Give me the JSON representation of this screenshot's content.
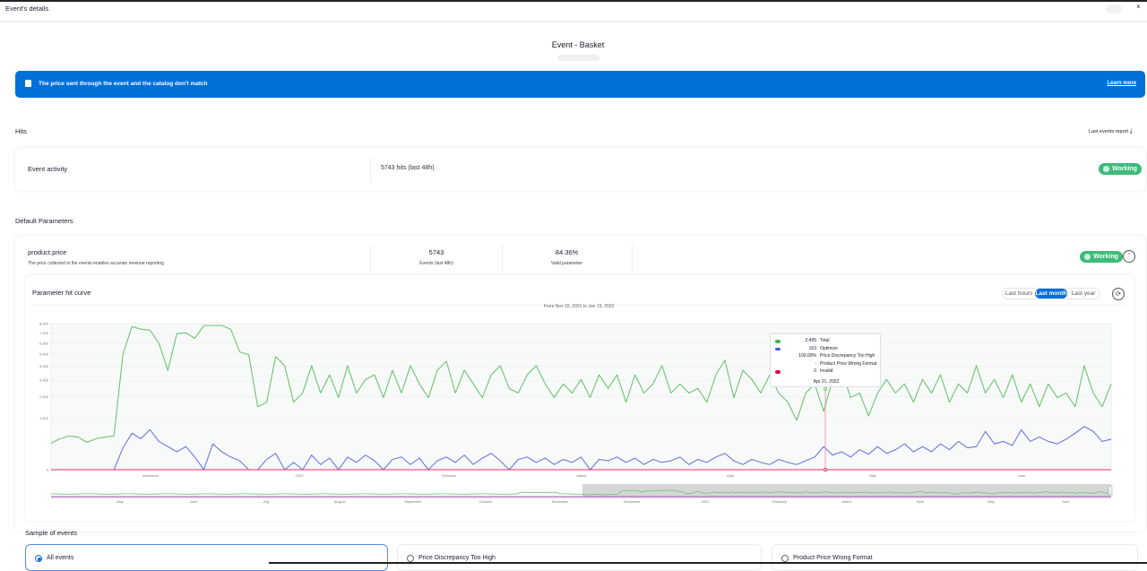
{
  "window": {
    "title": "Event's details",
    "close_icon": "close-icon"
  },
  "header": {
    "title": "Event - Basket"
  },
  "banner": {
    "text": "The price sent through the event and the catalog don't match",
    "link": "Learn more",
    "color": "#0070d9",
    "icon": "alert-icon"
  },
  "hits": {
    "title": "Hits",
    "report_link": "Last events report",
    "report_icon": "download-icon",
    "card": {
      "label": "Event activity",
      "value": "5743 hits (last 48h)",
      "status": "Working"
    }
  },
  "default_parameters": {
    "title": "Default Parameters",
    "param": {
      "name": "product.price",
      "description": "The price collected in the events enables accurate revenue reporting.",
      "stats": [
        {
          "value": "5743",
          "label": "Events (last 48h)"
        },
        {
          "value": "84.36%",
          "label": "Valid parameter"
        }
      ],
      "status": "Working",
      "status_color": "#3dbb7a"
    }
  },
  "hit_curve": {
    "title": "Parameter hit curve",
    "ranges": [
      "Last hours",
      "Last month",
      "Last year"
    ],
    "selected_range": "Last month",
    "range_text": "From Nov 10, 2021 to Jun 19, 2022"
  },
  "chart_data": {
    "type": "line",
    "title": "",
    "x_range": [
      "Nov 10, 2021",
      "Jun 19, 2022"
    ],
    "x_ticks": [
      "December",
      "2022",
      "February",
      "March",
      "April",
      "May",
      "June"
    ],
    "y_scale": "sqrt",
    "y_ticks": [
      "0",
      "1,000",
      "2,000",
      "3,000",
      "4,000",
      "5,000",
      "6,000",
      "7,000",
      "8,000"
    ],
    "ylim": [
      0,
      8000
    ],
    "grid": true,
    "series": [
      {
        "name": "Total",
        "color": "#6cc46f",
        "values": [
          262,
          361,
          427,
          400,
          280,
          361,
          400,
          427,
          5000,
          7690,
          7400,
          7300,
          6000,
          3700,
          6930,
          7022,
          6472,
          7792,
          7792,
          7792,
          7400,
          5194,
          4955,
          1486,
          1709,
          4799,
          4056,
          1709,
          2202,
          4056,
          2202,
          3376,
          1948,
          4056,
          2202,
          3059,
          3376,
          1948,
          3708,
          2202,
          4056,
          2758,
          1948,
          3708,
          4420,
          2202,
          3708,
          2758,
          1948,
          3376,
          4056,
          2472,
          2202,
          3376,
          4056,
          2758,
          1948,
          2758,
          2202,
          3059,
          1948,
          3376,
          2472,
          3376,
          1709,
          3376,
          2202,
          2758,
          4056,
          2202,
          2758,
          2202,
          2472,
          1709,
          3376,
          4500,
          1948,
          3708,
          3059,
          2202,
          3376,
          2202,
          1709,
          910,
          2202,
          2758,
          1278,
          3059,
          3708,
          1948,
          2202,
          1086,
          2202,
          3059,
          2202,
          2758,
          1709,
          3059,
          2202,
          3376,
          1709,
          2758,
          2202,
          4056,
          2202,
          3059,
          1948,
          3376,
          1709,
          2758,
          1486,
          2758,
          1948,
          2202,
          1486,
          4056,
          2202,
          1486,
          2758
        ]
      },
      {
        "name": "Optimize",
        "color": "#6b78e0",
        "values": [
          0,
          0,
          0,
          0,
          0,
          0,
          0,
          0,
          180,
          500,
          361,
          604,
          300,
          200,
          120,
          200,
          60,
          0,
          250,
          120,
          60,
          30,
          0,
          0,
          40,
          100,
          0,
          20,
          0,
          80,
          10,
          50,
          0,
          60,
          20,
          80,
          30,
          0,
          40,
          60,
          10,
          50,
          0,
          30,
          60,
          20,
          80,
          10,
          50,
          100,
          30,
          0,
          40,
          60,
          20,
          50,
          10,
          40,
          20,
          60,
          0,
          40,
          30,
          60,
          20,
          50,
          10,
          40,
          20,
          30,
          60,
          10,
          40,
          20,
          60,
          100,
          30,
          10,
          40,
          20,
          10,
          40,
          20,
          10,
          30,
          60,
          200,
          80,
          120,
          60,
          150,
          90,
          200,
          100,
          150,
          250,
          120,
          200,
          120,
          250,
          150,
          300,
          180,
          200,
          550,
          250,
          300,
          220,
          600,
          300,
          400,
          300,
          250,
          350,
          500,
          700,
          550,
          300,
          350
        ]
      },
      {
        "name": "Invalid",
        "color": "#e0306a",
        "values": [
          0,
          0
        ]
      }
    ],
    "tooltip": {
      "date": "Apr 21, 2022",
      "rows": [
        {
          "value": "2,495",
          "label": "Total",
          "color": "#3dbb4a"
        },
        {
          "value": "163",
          "label": "Optimize",
          "color": "#3a5bd9"
        },
        {
          "value": "100.00%",
          "label": "Price Discrepancy Too High",
          "color": ""
        },
        {
          "value": "-",
          "label": "Product Price Wrong Format",
          "color": ""
        },
        {
          "value": "0",
          "label": "Invalid",
          "color": "#e0103a"
        }
      ]
    },
    "navigator_ticks": [
      "May",
      "June",
      "July",
      "August",
      "September",
      "October",
      "November",
      "December",
      "2022",
      "February",
      "March",
      "April",
      "May",
      "June"
    ]
  },
  "samples": {
    "title": "Sample of events",
    "options": [
      {
        "label": "All events",
        "selected": true
      },
      {
        "label": "Price Discrepancy Too High",
        "selected": false
      },
      {
        "label": "Product Price Wrong Format",
        "selected": false
      }
    ]
  }
}
